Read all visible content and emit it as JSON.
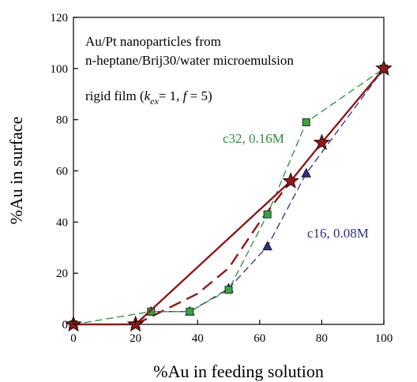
{
  "chart_data": {
    "type": "line",
    "xlabel": "%Au in feeding solution",
    "ylabel": "%Au in surface",
    "xlim": [
      0,
      100
    ],
    "ylim": [
      0,
      120
    ],
    "x_ticks": [
      0,
      20,
      40,
      60,
      80,
      100
    ],
    "y_ticks": [
      0,
      20,
      40,
      60,
      80,
      100,
      120
    ],
    "grid": false,
    "annotations": {
      "line1": "Au/Pt nanoparticles from",
      "line2": "n-heptane/Brij30/water microemulsion",
      "film_prefix": "rigid film (",
      "k_symbol": "k",
      "k_subscript": "ex",
      "k_value": "= 1, ",
      "f_symbol": "f",
      "f_value": " = 5)"
    },
    "series": [
      {
        "name": "c32, 0.16M",
        "color": "#2e8b3e",
        "line": "dashed",
        "marker": "square",
        "x": [
          0,
          25,
          37.5,
          50,
          62.5,
          75,
          100
        ],
        "y": [
          0,
          5,
          5,
          13.5,
          43,
          79,
          100
        ]
      },
      {
        "name": "c16, 0.08M",
        "color": "#2f2f7a",
        "line": "dashed",
        "marker": "triangle",
        "x": [
          0,
          20,
          25,
          37.5,
          50,
          62.5,
          75,
          100
        ],
        "y": [
          0,
          0,
          5,
          5,
          14,
          30.5,
          59,
          100
        ]
      },
      {
        "name": "",
        "color": "#8b1a1a",
        "line": "solid",
        "marker": "star",
        "x": [
          0,
          20,
          70,
          80,
          100
        ],
        "y": [
          0,
          0,
          56,
          71,
          100
        ]
      },
      {
        "name": "",
        "color": "#8b1a1a",
        "line": "long-dashed",
        "marker": "none",
        "x": [
          20,
          40,
          50,
          60,
          70
        ],
        "y": [
          0,
          12,
          22,
          40,
          56
        ]
      }
    ]
  }
}
